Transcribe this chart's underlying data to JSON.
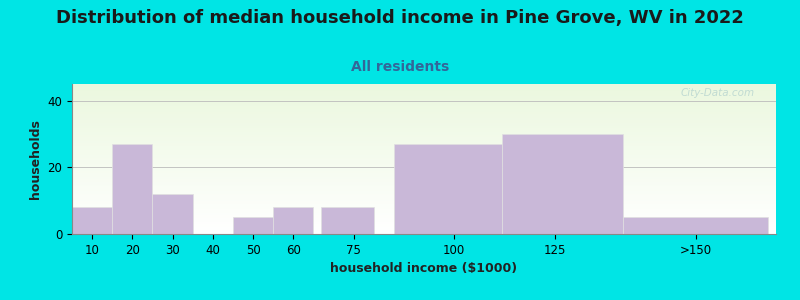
{
  "title": "Distribution of median household income in Pine Grove, WV in 2022",
  "subtitle": "All residents",
  "xlabel": "household income ($1000)",
  "ylabel": "households",
  "bar_labels": [
    "10",
    "20",
    "30",
    "40",
    "50",
    "60",
    "75",
    "100",
    "125",
    ">150"
  ],
  "bar_values": [
    8,
    27,
    12,
    0,
    5,
    8,
    8,
    27,
    30,
    5
  ],
  "bar_left_edges": [
    5,
    15,
    25,
    35,
    45,
    55,
    67,
    85,
    112,
    142
  ],
  "bar_rights": [
    15,
    25,
    35,
    45,
    55,
    65,
    80,
    112,
    142,
    178
  ],
  "tick_positions": [
    10,
    20,
    30,
    40,
    50,
    60,
    75,
    100,
    125,
    160
  ],
  "bar_color": "#c9b8d8",
  "ylim": [
    0,
    45
  ],
  "yticks": [
    0,
    20,
    40
  ],
  "background_color": "#00e5e5",
  "title_color": "#1a1a1a",
  "subtitle_color": "#336699",
  "title_fontsize": 13,
  "subtitle_fontsize": 10,
  "axis_label_fontsize": 9,
  "watermark": "City-Data.com"
}
